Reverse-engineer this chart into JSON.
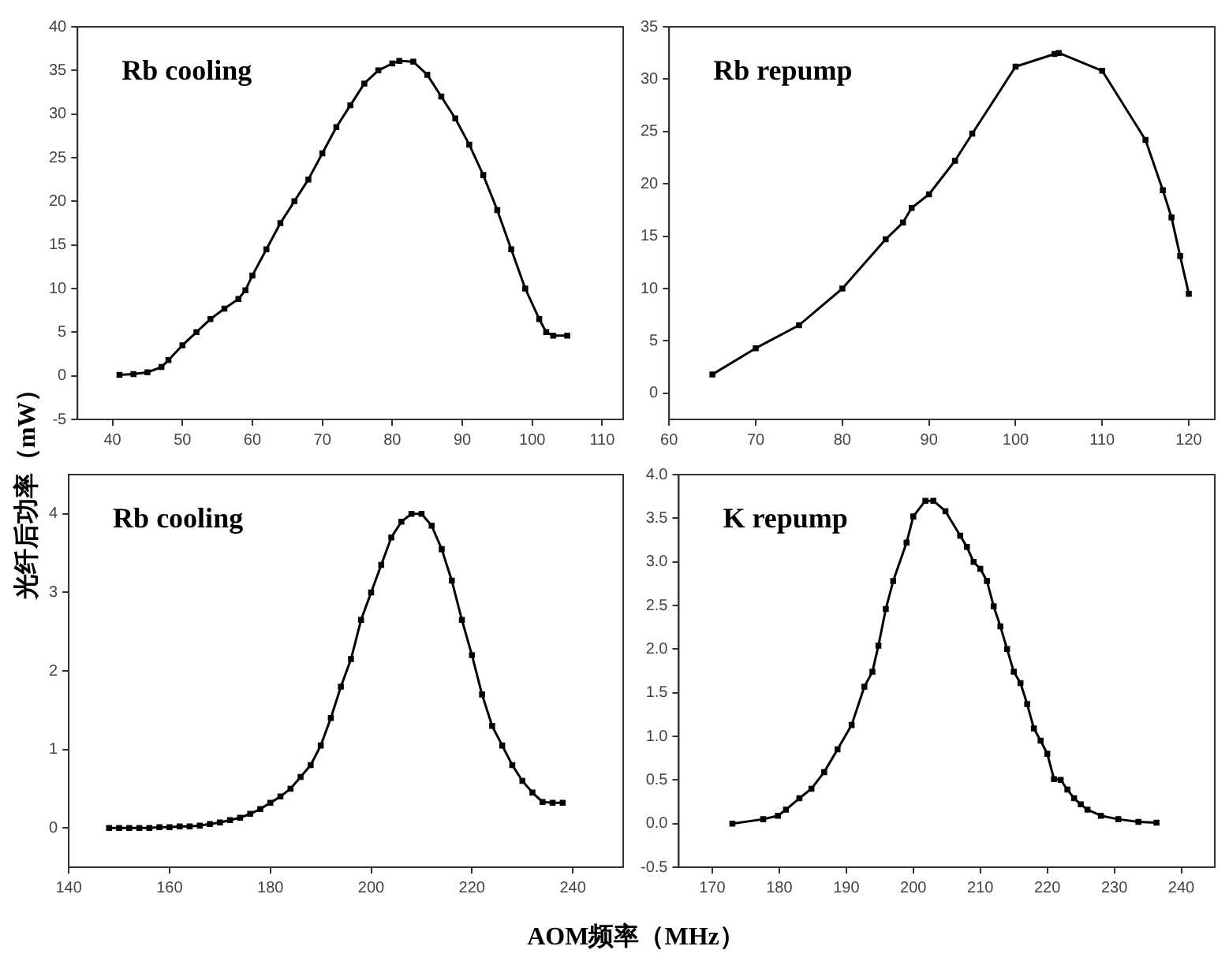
{
  "chart_data": [
    {
      "type": "line",
      "annotations": [
        "Rb cooling"
      ],
      "ylabel": "光纤后功率（mW）",
      "marker": "square",
      "line_style": "solid",
      "grid": false,
      "legend": false,
      "xlim": [
        35,
        113
      ],
      "xticks": [
        40,
        50,
        60,
        70,
        80,
        90,
        100,
        110
      ],
      "ylim": [
        -5,
        40
      ],
      "yticks": [
        -5,
        0,
        5,
        10,
        15,
        20,
        25,
        30,
        35,
        40
      ],
      "series": [
        {
          "color": "#000000",
          "x": [
            41,
            43,
            45,
            47,
            48,
            50,
            52,
            54,
            56,
            58,
            59,
            60,
            62,
            64,
            66,
            68,
            70,
            72,
            74,
            76,
            78,
            80,
            81,
            83,
            85,
            87,
            89,
            91,
            93,
            95,
            97,
            99,
            101,
            102,
            103,
            105
          ],
          "values": [
            0.1,
            0.2,
            0.4,
            1.0,
            1.8,
            3.5,
            5,
            6.5,
            7.7,
            8.8,
            9.8,
            11.5,
            14.5,
            17.5,
            20,
            22.5,
            25.5,
            28.5,
            31,
            33.5,
            35,
            35.8,
            36.1,
            36,
            34.5,
            32,
            29.5,
            26.5,
            23,
            19,
            14.5,
            10,
            6.5,
            5,
            4.6,
            4.6
          ]
        }
      ]
    },
    {
      "type": "line",
      "annotations": [
        "Rb repump"
      ],
      "marker": "square",
      "line_style": "solid",
      "grid": false,
      "legend": false,
      "xlim": [
        60,
        123
      ],
      "xticks": [
        60,
        70,
        80,
        90,
        100,
        110,
        120
      ],
      "ylim": [
        -2.5,
        35
      ],
      "yticks": [
        0,
        5,
        10,
        15,
        20,
        25,
        30,
        35
      ],
      "series": [
        {
          "color": "#000000",
          "x": [
            65,
            70,
            75,
            80,
            85,
            87,
            88,
            90,
            93,
            95,
            100,
            104.5,
            105,
            110,
            115,
            117,
            118,
            119,
            120
          ],
          "values": [
            1.8,
            4.3,
            6.5,
            10,
            14.7,
            16.3,
            17.7,
            19,
            22.2,
            24.8,
            31.2,
            32.4,
            32.5,
            30.8,
            24.2,
            19.4,
            16.8,
            13.1,
            9.5
          ]
        }
      ]
    },
    {
      "type": "line",
      "annotations": [
        "Rb cooling"
      ],
      "xlabel": "AOM频率（MHz）",
      "marker": "square",
      "line_style": "solid",
      "grid": false,
      "legend": false,
      "xlim": [
        140,
        250
      ],
      "xticks": [
        140,
        160,
        180,
        200,
        220,
        240
      ],
      "ylim": [
        -0.5,
        4.5
      ],
      "yticks": [
        0,
        1,
        2,
        3,
        4
      ],
      "series": [
        {
          "color": "#000000",
          "x": [
            148,
            150,
            152,
            154,
            156,
            158,
            160,
            162,
            164,
            166,
            168,
            170,
            172,
            174,
            176,
            178,
            180,
            182,
            184,
            186,
            188,
            190,
            192,
            194,
            196,
            198,
            200,
            202,
            204,
            206,
            208,
            210,
            212,
            214,
            216,
            218,
            220,
            222,
            224,
            226,
            228,
            230,
            232,
            234,
            236,
            238
          ],
          "values": [
            0,
            0,
            0,
            0,
            0,
            0.01,
            0.01,
            0.02,
            0.02,
            0.03,
            0.05,
            0.07,
            0.1,
            0.13,
            0.18,
            0.24,
            0.32,
            0.4,
            0.5,
            0.65,
            0.8,
            1.05,
            1.4,
            1.8,
            2.15,
            2.65,
            3.0,
            3.35,
            3.7,
            3.9,
            4.0,
            4.0,
            3.85,
            3.55,
            3.15,
            2.65,
            2.2,
            1.7,
            1.3,
            1.05,
            0.8,
            0.6,
            0.45,
            0.33,
            0.32,
            0.32
          ]
        }
      ]
    },
    {
      "type": "line",
      "annotations": [
        "K repump"
      ],
      "marker": "square",
      "line_style": "solid",
      "grid": false,
      "legend": false,
      "xlim": [
        165,
        245
      ],
      "xticks": [
        170,
        180,
        190,
        200,
        210,
        220,
        230,
        240
      ],
      "ylim": [
        -0.5,
        4.0
      ],
      "yticks": [
        -0.5,
        {
          "value": 0,
          "label": "0.0"
        },
        0.5,
        {
          "value": 1,
          "label": "1.0"
        },
        1.5,
        {
          "value": 2,
          "label": "2.0"
        },
        2.5,
        {
          "value": 3,
          "label": "3.0"
        },
        3.5,
        {
          "value": 4,
          "label": "4.0"
        }
      ],
      "series": [
        {
          "color": "#000000",
          "x": [
            173,
            177.6,
            179.8,
            181,
            183,
            184.8,
            186.7,
            188.7,
            190.8,
            192.7,
            193.9,
            194.8,
            195.9,
            197,
            199,
            200,
            201.8,
            203,
            204.8,
            207,
            208,
            209,
            210,
            211,
            212,
            213,
            214,
            215,
            216,
            217,
            218,
            219,
            220,
            221,
            222,
            223,
            224,
            225,
            226,
            228,
            230.6,
            233.6,
            236.3
          ],
          "values": [
            0,
            0.05,
            0.09,
            0.16,
            0.29,
            0.4,
            0.59,
            0.85,
            1.13,
            1.57,
            1.74,
            2.04,
            2.46,
            2.78,
            3.22,
            3.52,
            3.7,
            3.7,
            3.58,
            3.3,
            3.17,
            3.0,
            2.92,
            2.78,
            2.49,
            2.26,
            2.0,
            1.74,
            1.61,
            1.37,
            1.09,
            0.95,
            0.8,
            0.51,
            0.5,
            0.39,
            0.29,
            0.22,
            0.16,
            0.09,
            0.05,
            0.02,
            0.01
          ]
        }
      ]
    }
  ]
}
